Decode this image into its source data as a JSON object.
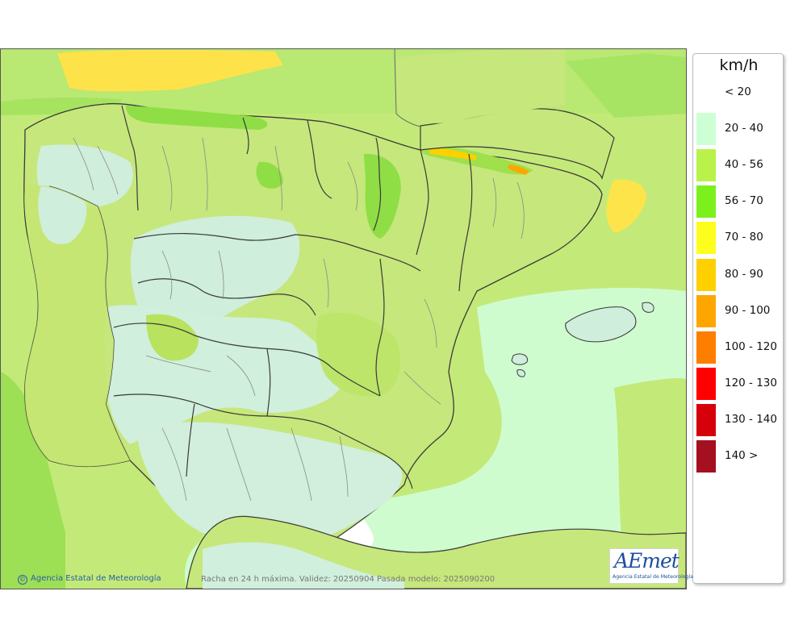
{
  "legend": {
    "unit": "km/h",
    "items": [
      {
        "label": "< 20",
        "color": "#ffffff"
      },
      {
        "label": "20 - 40",
        "color": "#cdffd4"
      },
      {
        "label": "40 - 56",
        "color": "#b9f24b"
      },
      {
        "label": "56 - 70",
        "color": "#7cf01c"
      },
      {
        "label": "70 - 80",
        "color": "#fdfd1e"
      },
      {
        "label": "80 - 90",
        "color": "#fed000"
      },
      {
        "label": "90 - 100",
        "color": "#fea600"
      },
      {
        "label": "100 - 120",
        "color": "#fe7e00"
      },
      {
        "label": "120 - 130",
        "color": "#fe0000"
      },
      {
        "label": "130 - 140",
        "color": "#d5000a"
      },
      {
        "label": "140 >",
        "color": "#a4101f"
      }
    ]
  },
  "map": {
    "sea_color": "#c2ea78",
    "land_base_color": "#c7e97a",
    "border_color": "#3a3a3a",
    "province_border_color": "#8a8a8a"
  },
  "footer": {
    "credit_symbol": "©",
    "credit": "Agencia Estatal de Meteorología",
    "caption": "Racha en 24 h máxima. Validez: 20250904 Pasada modelo: 2025090200"
  },
  "logo": {
    "name": "AEmet",
    "subtitle": "Agencia Estatal de Meteorología"
  }
}
